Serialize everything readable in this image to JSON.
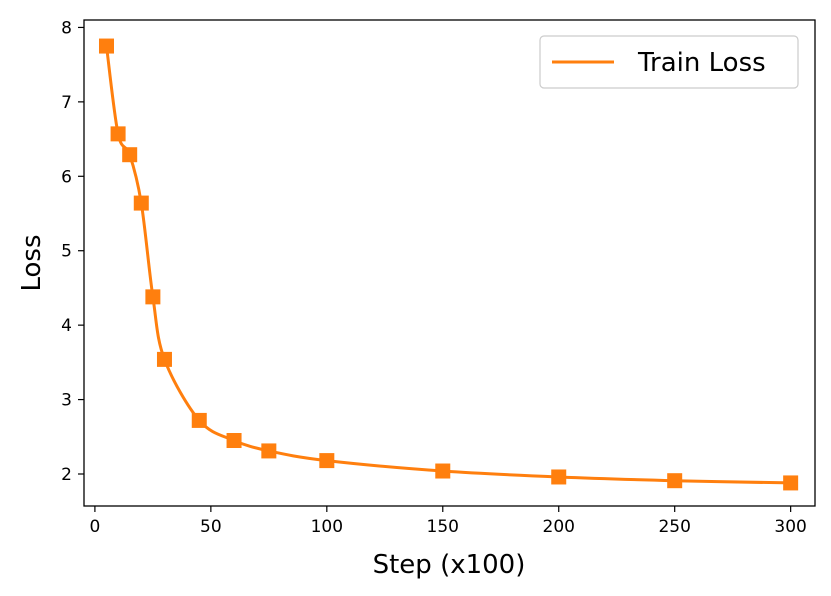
{
  "chart_data": {
    "type": "line",
    "xlabel": "Step (x100)",
    "ylabel": "Loss",
    "xlim": [
      -4.7,
      310.5
    ],
    "ylim": [
      1.57,
      8.1
    ],
    "xticks": [
      0,
      50,
      100,
      150,
      200,
      250,
      300
    ],
    "yticks": [
      2,
      3,
      4,
      5,
      6,
      7,
      8
    ],
    "grid": false,
    "legend": {
      "position": "upper-right",
      "entries": [
        "Train Loss"
      ]
    },
    "series": [
      {
        "name": "Train Loss",
        "color": "#ff7f0e",
        "marker": "square",
        "points": [
          {
            "x": 5,
            "y": 7.75
          },
          {
            "x": 10,
            "y": 6.57
          },
          {
            "x": 15,
            "y": 6.29
          },
          {
            "x": 20,
            "y": 5.64
          },
          {
            "x": 25,
            "y": 4.38
          },
          {
            "x": 30,
            "y": 3.54
          },
          {
            "x": 45,
            "y": 2.72
          },
          {
            "x": 60,
            "y": 2.45
          },
          {
            "x": 75,
            "y": 2.31
          },
          {
            "x": 100,
            "y": 2.18
          },
          {
            "x": 150,
            "y": 2.04
          },
          {
            "x": 200,
            "y": 1.96
          },
          {
            "x": 250,
            "y": 1.91
          },
          {
            "x": 300,
            "y": 1.88
          }
        ]
      }
    ]
  }
}
